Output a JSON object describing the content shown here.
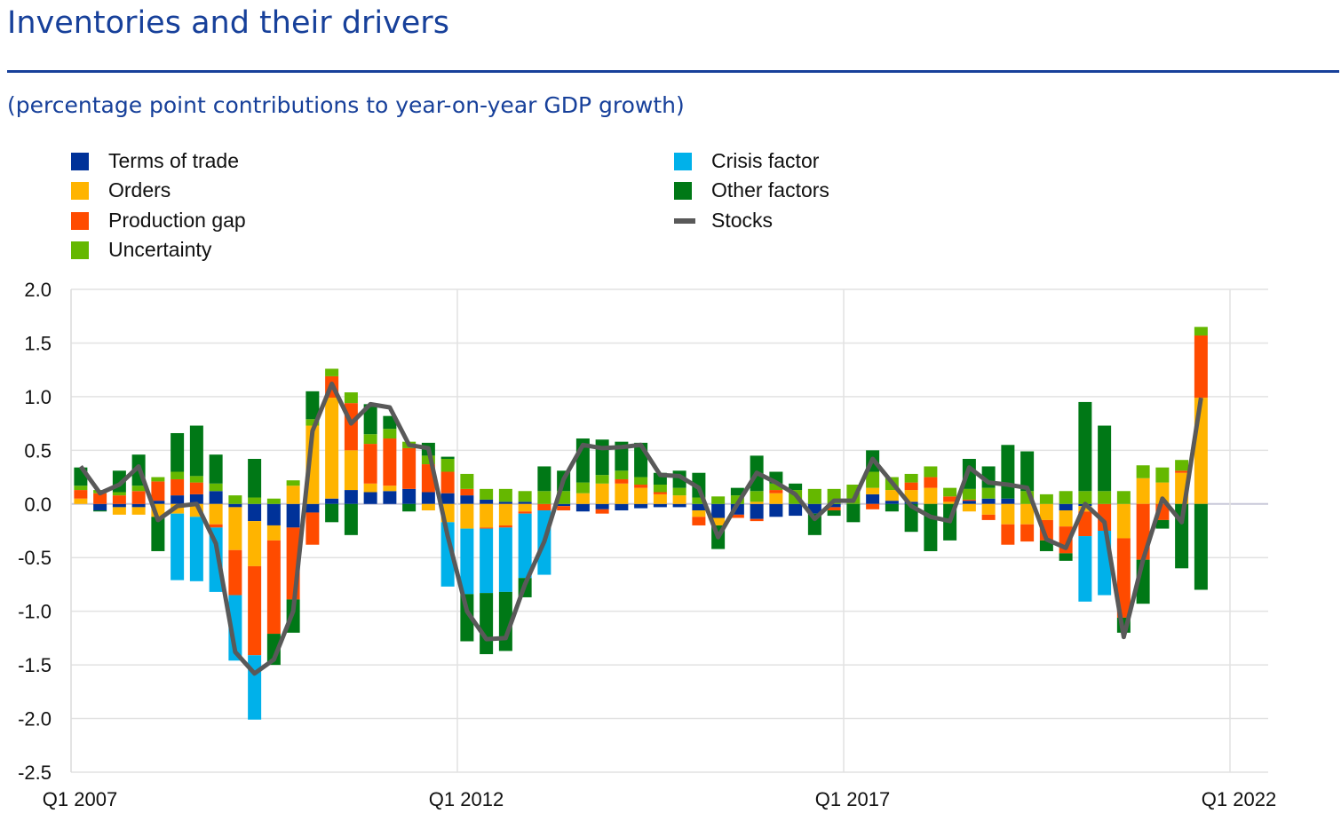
{
  "title": "Inventories and their drivers",
  "subtitle": "(percentage point contributions to year-on-year GDP growth)",
  "chart_data": {
    "type": "bar",
    "stacked": true,
    "title": "Inventories and their drivers",
    "subtitle": "(percentage point contributions to year-on-year GDP growth)",
    "xlabel": "",
    "ylabel": "",
    "ylim": [
      -2.5,
      2.0
    ],
    "yticks": [
      "2.0",
      "1.5",
      "1.0",
      "0.5",
      "0.0",
      "-0.5",
      "-1.0",
      "-1.5",
      "-2.0",
      "-2.5"
    ],
    "xticks": [
      "Q1 2007",
      "Q1 2012",
      "Q1 2017",
      "Q1 2022"
    ],
    "grid": true,
    "legend_position": "top",
    "categories": [
      "Q1 2007",
      "Q2 2007",
      "Q3 2007",
      "Q4 2007",
      "Q1 2008",
      "Q2 2008",
      "Q3 2008",
      "Q4 2008",
      "Q1 2009",
      "Q2 2009",
      "Q3 2009",
      "Q4 2009",
      "Q1 2010",
      "Q2 2010",
      "Q3 2010",
      "Q4 2010",
      "Q1 2011",
      "Q2 2011",
      "Q3 2011",
      "Q4 2011",
      "Q1 2012",
      "Q2 2012",
      "Q3 2012",
      "Q4 2012",
      "Q1 2013",
      "Q2 2013",
      "Q3 2013",
      "Q4 2013",
      "Q1 2014",
      "Q2 2014",
      "Q3 2014",
      "Q4 2014",
      "Q1 2015",
      "Q2 2015",
      "Q3 2015",
      "Q4 2015",
      "Q1 2016",
      "Q2 2016",
      "Q3 2016",
      "Q4 2016",
      "Q1 2017",
      "Q2 2017",
      "Q3 2017",
      "Q4 2017",
      "Q1 2018",
      "Q2 2018",
      "Q3 2018",
      "Q4 2018",
      "Q1 2019",
      "Q2 2019",
      "Q3 2019",
      "Q4 2019",
      "Q1 2020",
      "Q2 2020",
      "Q3 2020",
      "Q4 2020",
      "Q1 2021",
      "Q2 2021",
      "Q3 2021"
    ],
    "series": [
      {
        "name": "Terms of trade",
        "kind": "bar",
        "color": "#003299",
        "values": [
          0,
          -0.06,
          -0.03,
          -0.03,
          0.03,
          0.08,
          0.09,
          0.12,
          -0.03,
          -0.16,
          -0.2,
          -0.22,
          -0.08,
          0.05,
          0.13,
          0.11,
          0.12,
          0.14,
          0.11,
          0.1,
          0.08,
          0.04,
          0.02,
          0.02,
          0,
          -0.02,
          -0.07,
          -0.05,
          -0.06,
          -0.04,
          -0.03,
          -0.03,
          -0.06,
          -0.13,
          -0.1,
          -0.14,
          -0.12,
          -0.11,
          -0.09,
          -0.03,
          0,
          0.09,
          0.03,
          0.02,
          0,
          0,
          0.03,
          0.05,
          0.05,
          0,
          0,
          -0.06,
          -0.02,
          0,
          0,
          0,
          0,
          0,
          0
        ]
      },
      {
        "name": "Orders",
        "kind": "bar",
        "color": "#ffb400",
        "values": [
          0.05,
          0,
          -0.07,
          -0.07,
          -0.12,
          -0.09,
          -0.12,
          -0.19,
          -0.4,
          -0.42,
          -0.14,
          0.17,
          0.73,
          0.94,
          0.37,
          0.08,
          0.05,
          0,
          -0.06,
          -0.17,
          -0.23,
          -0.22,
          -0.2,
          -0.07,
          0,
          0,
          0.1,
          0.19,
          0.19,
          0.15,
          0.09,
          0.08,
          -0.06,
          -0.07,
          0,
          0.02,
          0.1,
          0,
          0,
          0,
          0,
          0.06,
          0.1,
          0.11,
          0.15,
          0.02,
          -0.07,
          -0.1,
          -0.19,
          -0.19,
          -0.15,
          -0.15,
          -0.05,
          0,
          -0.32,
          0.24,
          0.2,
          0.29,
          0.99
        ]
      },
      {
        "name": "Production gap",
        "kind": "bar",
        "color": "#ff4b00",
        "values": [
          0.08,
          0.1,
          0.08,
          0.12,
          0.18,
          0.15,
          0.11,
          -0.03,
          -0.42,
          -0.83,
          -0.87,
          -0.67,
          -0.3,
          0.2,
          0.44,
          0.37,
          0.44,
          0.38,
          0.26,
          0.2,
          0.06,
          -0.01,
          -0.02,
          -0.02,
          -0.06,
          -0.04,
          0,
          -0.04,
          0.04,
          0.03,
          0.02,
          0,
          -0.08,
          0,
          -0.03,
          -0.02,
          0.03,
          0,
          0,
          -0.03,
          0,
          -0.05,
          0,
          0.07,
          0.1,
          0.05,
          0.01,
          -0.05,
          -0.19,
          -0.16,
          -0.19,
          -0.25,
          -0.23,
          -0.25,
          -0.74,
          -0.52,
          -0.15,
          0.02,
          0.58
        ]
      },
      {
        "name": "Uncertainty",
        "kind": "bar",
        "color": "#65b800",
        "values": [
          0.04,
          0.03,
          0.03,
          0.05,
          0.04,
          0.07,
          0.06,
          0.07,
          0.08,
          0.06,
          0.05,
          0.05,
          0.06,
          0.07,
          0.1,
          0.09,
          0.09,
          0.06,
          0.08,
          0.12,
          0.14,
          0.1,
          0.12,
          0.1,
          0.12,
          0.12,
          0.1,
          0.08,
          0.08,
          0.07,
          0.07,
          0.07,
          0.06,
          0.07,
          0.08,
          0.1,
          0.06,
          0.13,
          0.14,
          0.14,
          0.18,
          0.15,
          0.12,
          0.08,
          0.1,
          0.08,
          0.1,
          0.1,
          0,
          0.12,
          0.09,
          0.12,
          0.12,
          0.12,
          0.12,
          0.12,
          0.14,
          0.1,
          0.08
        ]
      },
      {
        "name": "Crisis factor",
        "kind": "bar",
        "color": "#00b1ea",
        "values": [
          0,
          0,
          0,
          0,
          0,
          -0.62,
          -0.6,
          -0.6,
          -0.61,
          -0.6,
          0,
          0,
          0,
          0,
          0,
          0,
          0,
          0,
          0,
          -0.6,
          -0.61,
          -0.6,
          -0.6,
          -0.6,
          -0.6,
          0,
          0,
          0,
          0,
          0,
          0,
          0,
          0,
          0,
          0,
          0,
          0,
          0,
          0,
          0,
          0,
          0,
          0,
          0,
          0,
          0,
          0,
          0,
          0,
          0,
          0,
          0,
          -0.61,
          -0.6,
          0,
          0,
          0,
          0,
          0
        ]
      },
      {
        "name": "Other factors",
        "kind": "bar",
        "color": "#007816",
        "values": [
          0.17,
          -0.01,
          0.2,
          0.29,
          -0.32,
          0.36,
          0.47,
          0.27,
          0,
          0.36,
          -0.29,
          -0.31,
          0.26,
          -0.17,
          -0.29,
          0.28,
          0.12,
          -0.07,
          0.12,
          0.02,
          -0.44,
          -0.57,
          -0.55,
          -0.18,
          0.23,
          0.19,
          0.41,
          0.33,
          0.27,
          0.32,
          0.11,
          0.16,
          0.23,
          -0.22,
          0.07,
          0.33,
          0.11,
          0.06,
          -0.2,
          -0.05,
          -0.17,
          0.2,
          -0.07,
          -0.26,
          -0.44,
          -0.34,
          0.28,
          0.2,
          0.5,
          0.37,
          -0.1,
          -0.07,
          0.83,
          0.61,
          -0.14,
          -0.41,
          -0.08,
          -0.6,
          -0.8
        ]
      },
      {
        "name": "Stocks",
        "kind": "line",
        "color": "#595959",
        "values": [
          0.35,
          0.1,
          0.18,
          0.35,
          -0.15,
          -0.02,
          0,
          -0.37,
          -1.38,
          -1.58,
          -1.45,
          -1.0,
          0.68,
          1.12,
          0.75,
          0.93,
          0.9,
          0.55,
          0.52,
          -0.3,
          -1.0,
          -1.26,
          -1.25,
          -0.75,
          -0.35,
          0.23,
          0.55,
          0.52,
          0.53,
          0.55,
          0.27,
          0.26,
          0.15,
          -0.31,
          0,
          0.29,
          0.2,
          0.09,
          -0.14,
          0.03,
          0.03,
          0.42,
          0.2,
          -0.02,
          -0.12,
          -0.16,
          0.34,
          0.2,
          0.18,
          0.15,
          -0.33,
          -0.41,
          0,
          -0.17,
          -1.24,
          -0.52,
          0.05,
          -0.17,
          0.99
        ]
      }
    ]
  }
}
